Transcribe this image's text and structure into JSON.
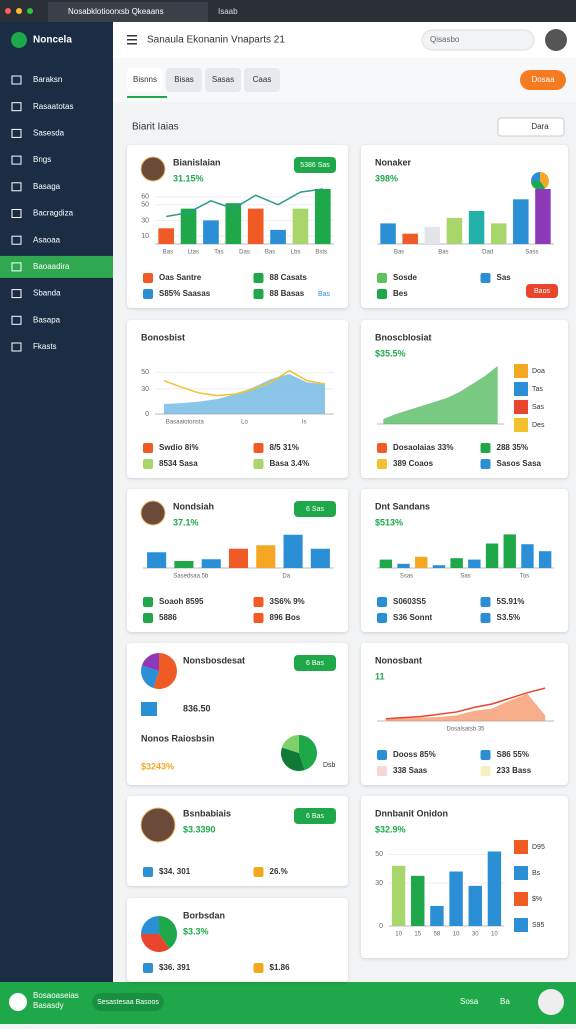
{
  "browser": {
    "tab": "Nosabklotioorxsb Qkeaans",
    "tab2": "Isaab"
  },
  "sidebar": {
    "brand": "Noncela",
    "items": [
      "Baraksn",
      "Rasaatotas",
      "Sasesda",
      "Bngs",
      "Basaga",
      "Bacragdiza",
      "Asaoaa",
      "Baoaadira",
      "Sbanda",
      "Basapa",
      "Fkasts"
    ],
    "active": 7
  },
  "header": {
    "title": "Sanaula Ekonanin Vnaparts 21",
    "search": "Qisasbo"
  },
  "tabs": [
    "Bisnns",
    "Bisas",
    "Sasas",
    "Caas"
  ],
  "tab_active": 0,
  "button": "Dosaa",
  "section": {
    "title": "Biarit Iaias",
    "action": "Dara"
  },
  "cards": [
    {
      "avatar": true,
      "title": "Bianislaian",
      "value": "31.15%",
      "badge": "5386 Sas",
      "ylim": [
        0,
        70
      ],
      "yticks": [
        10,
        30,
        50,
        60
      ],
      "bars": [
        20,
        45,
        30,
        52,
        45,
        18,
        45,
        70
      ],
      "colors": [
        "#f05a24",
        "#1ea84a",
        "#2b8fd6",
        "#1ea84a",
        "#f05a24",
        "#2b8fd6",
        "#a8d66a",
        "#1ea84a"
      ],
      "line": [
        35,
        40,
        55,
        45,
        62,
        50,
        66,
        70
      ],
      "line_color": "#2b9a8a",
      "axis": [
        "Bas",
        "Ltas",
        "Tas",
        "Das",
        "Bas",
        "Lbs",
        "Bsts"
      ],
      "legend": [
        {
          "text": "Oas Santre",
          "color": "#f05a24"
        },
        {
          "text": "88 Casats",
          "color": "#1ea84a"
        },
        {
          "text": "S85% Saasas",
          "color": "#2b8fd6"
        },
        {
          "text": "88 Basas",
          "color": "#1ea84a"
        }
      ],
      "chip": "Bas"
    },
    {
      "title": "Nonaker",
      "value": "398%",
      "ylim": [
        0,
        80
      ],
      "pie_small": [
        40,
        35,
        25
      ],
      "pie_colors": [
        "#f5a623",
        "#1ea84a",
        "#2b8fd6"
      ],
      "bars": [
        30,
        15,
        25,
        38,
        48,
        30,
        65,
        80
      ],
      "colors": [
        "#2b8fd6",
        "#f05a24",
        "#e2e6ea",
        "#a8d66a",
        "#23b0a8",
        "#a8d66a",
        "#2b8fd6",
        "#8e3ab8"
      ],
      "axis": [
        "Bas",
        "Bas",
        "Dad",
        "Sass"
      ],
      "legend": [
        {
          "text": "Sosde",
          "color": "#5ec25a"
        },
        {
          "text": "Sas",
          "color": "#2b8fd6"
        },
        {
          "text": "Bes",
          "color": "#1ea84a"
        }
      ],
      "button": "Baos"
    },
    {
      "title": "Bonosbist",
      "ylim": [
        0,
        60
      ],
      "yticks": [
        0,
        30,
        50
      ],
      "area": [
        12,
        13,
        15,
        18,
        24,
        32,
        42,
        48,
        38,
        36
      ],
      "area_color": "#5aaee0",
      "line": [
        40,
        32,
        25,
        22,
        24,
        30,
        38,
        52,
        40,
        36
      ],
      "line_color": "#f2c12e",
      "axis": [
        "Basaaiotonsta",
        "Lo",
        "Is"
      ],
      "legend": [
        {
          "text": "Swdio 8i%",
          "color": "#f05a24"
        },
        {
          "text": "8/5 31%",
          "color": "#f05a24"
        },
        {
          "text": "8534 Sasa",
          "color": "#a8d66a"
        },
        {
          "text": "Basa 3.4%",
          "color": "#a8d66a"
        }
      ]
    },
    {
      "title": "Bnoscblosiat",
      "value": "$35.5%",
      "ylim": [
        0,
        60
      ],
      "area": [
        5,
        10,
        14,
        18,
        22,
        26,
        32,
        40,
        48,
        58
      ],
      "area_color": "#3fb24c",
      "side": [
        {
          "text": "Doa",
          "color": "#f5a623"
        },
        {
          "text": "Tas",
          "color": "#2b8fd6"
        },
        {
          "text": "Sas",
          "color": "#e8452c"
        },
        {
          "text": "Des",
          "color": "#f2c12e"
        }
      ],
      "legend": [
        {
          "text": "Dosaolaias 33%",
          "color": "#f05a24"
        },
        {
          "text": "288 35%",
          "color": "#1ea84a"
        },
        {
          "text": "389 Coaos",
          "color": "#f2c12e"
        },
        {
          "text": "Sasos Sasa",
          "color": "#2b8fd6"
        }
      ]
    },
    {
      "avatar": true,
      "title": "Nondsiah",
      "value": "37.1%",
      "badge": "6 Sas",
      "ylim": [
        0,
        40
      ],
      "bars": [
        18,
        8,
        10,
        22,
        26,
        38,
        22
      ],
      "colors": [
        "#2b8fd6",
        "#1ea84a",
        "#2b8fd6",
        "#f05a24",
        "#f5a623",
        "#2b8fd6",
        "#2b8fd6"
      ],
      "axis": [
        "Sasedsaa 5b",
        "Da"
      ],
      "legend": [
        {
          "text": "Soaoh 8595",
          "color": "#1ea84a"
        },
        {
          "text": "3S6% 9%",
          "color": "#f05a24"
        },
        {
          "text": "5886",
          "color": "#1ea84a"
        },
        {
          "text": "896 Bos",
          "color": "#f05a24"
        }
      ]
    },
    {
      "title": "Dnt Sandans",
      "value": "$513%",
      "ylim": [
        0,
        50
      ],
      "bars": [
        12,
        6,
        16,
        4,
        14,
        12,
        35,
        48,
        34,
        24
      ],
      "colors": [
        "#1ea84a",
        "#2b8fd6",
        "#f5a623",
        "#2b8fd6",
        "#1ea84a",
        "#2b8fd6",
        "#1ea84a",
        "#1ea84a",
        "#2b8fd6",
        "#2b8fd6"
      ],
      "axis": [
        "Ssas",
        "Sas",
        "Tos"
      ],
      "legend": [
        {
          "text": "S0603S5",
          "color": "#2b8fd6"
        },
        {
          "text": "5S.91%",
          "color": "#2b8fd6"
        },
        {
          "text": "S36 Sonnt",
          "color": "#2b8fd6"
        },
        {
          "text": "S3.5%",
          "color": "#2b8fd6"
        }
      ]
    },
    {
      "title": "Nonsbosdesat",
      "value": "836.50",
      "badge": "6 Bas",
      "pie": [
        55,
        25,
        20
      ],
      "pie_colors": [
        "#f05a24",
        "#2b8fd6",
        "#8e3ab8"
      ],
      "subtitle": "Nonos Raiosbsin",
      "subvalue": "$3243%",
      "pie2": [
        45,
        35,
        20
      ],
      "pie2_colors": [
        "#1ea84a",
        "#0f7a35",
        "#7ed06a"
      ],
      "pie2_label": "Dsb"
    },
    {
      "title": "Nonosbant",
      "value": "11",
      "ylim": [
        0,
        60
      ],
      "area": [
        4,
        5,
        6,
        7,
        10,
        18,
        22,
        36,
        48,
        10
      ],
      "area_color": "#f58a5a",
      "line": [
        4,
        6,
        8,
        12,
        16,
        24,
        30,
        40,
        50,
        58
      ],
      "line_color": "#e8452c",
      "axis": [
        "Dosalsatsb 35"
      ],
      "legend": [
        {
          "text": "Dooss 85%",
          "color": "#2b8fd6"
        },
        {
          "text": "S86 55%",
          "color": "#2b8fd6"
        },
        {
          "text": "338 Saas",
          "color": "#f6d6d6"
        },
        {
          "text": "233 Bass",
          "color": "#f6f0c0"
        }
      ]
    },
    {
      "avatar": true,
      "big": true,
      "title": "Bsnbabiais",
      "value": "$3.3390",
      "badge": "6 Bas",
      "legend": [
        {
          "text": "$34. 301",
          "color": "#2b8fd6"
        },
        {
          "text": "26.%",
          "color": "#f5a623"
        }
      ]
    },
    {
      "title": "Dnnbanit Onidon",
      "value": "$32.9%",
      "ylim": [
        0,
        60
      ],
      "yticks": [
        0,
        30,
        50
      ],
      "bars": [
        42,
        35,
        14,
        38,
        28,
        52
      ],
      "colors": [
        "#a8d66a",
        "#1ea84a",
        "#2b8fd6",
        "#2b8fd6",
        "#2b8fd6",
        "#2b8fd6"
      ],
      "axis": [
        "10",
        "15",
        "58",
        "10",
        "30",
        "10"
      ],
      "side": [
        {
          "text": "D95",
          "color": "#f05a24"
        },
        {
          "text": "Bs",
          "color": "#2b8fd6"
        },
        {
          "text": "$%",
          "color": "#f05a24"
        },
        {
          "text": "S95",
          "color": "#2b8fd6"
        }
      ]
    },
    {
      "title": "Borbsdan",
      "value": "$3.3%",
      "pie": [
        40,
        35,
        25
      ],
      "pie_colors": [
        "#1ea84a",
        "#e8452c",
        "#2b8fd6"
      ],
      "legend": [
        {
          "text": "$36. 391",
          "color": "#2b8fd6"
        },
        {
          "text": "$1.86",
          "color": "#f5a623"
        }
      ]
    }
  ],
  "footer": {
    "title": "Bosaoaseias",
    "subtitle": "Basasdy",
    "pill": "Sesastesaa Basoos",
    "right": "Sosa",
    "right2": "Ba"
  }
}
